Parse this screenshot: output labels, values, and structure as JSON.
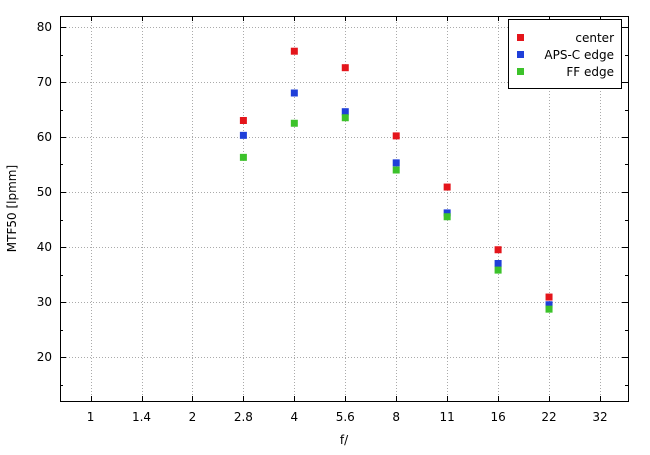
{
  "chart_data": {
    "type": "scatter",
    "xlabel": "f/",
    "ylabel": "MTF50 [lpmm]",
    "x_categories": [
      "1",
      "1.4",
      "2",
      "2.8",
      "4",
      "5.6",
      "8",
      "11",
      "16",
      "22",
      "32"
    ],
    "ylim": [
      12,
      82
    ],
    "yticks": [
      20,
      30,
      40,
      50,
      60,
      70,
      80
    ],
    "grid": true,
    "legend_position": "top-right",
    "series": [
      {
        "name": "center",
        "color": "#e4151b",
        "points": [
          {
            "x": "2.8",
            "y": 63.0
          },
          {
            "x": "4",
            "y": 75.6
          },
          {
            "x": "5.6",
            "y": 72.6
          },
          {
            "x": "8",
            "y": 60.2
          },
          {
            "x": "11",
            "y": 50.9
          },
          {
            "x": "16",
            "y": 39.5
          },
          {
            "x": "22",
            "y": 30.9
          }
        ]
      },
      {
        "name": "APS-C edge",
        "color": "#1f3fd9",
        "points": [
          {
            "x": "2.8",
            "y": 60.3
          },
          {
            "x": "4",
            "y": 68.0
          },
          {
            "x": "5.6",
            "y": 64.6
          },
          {
            "x": "8",
            "y": 55.3
          },
          {
            "x": "11",
            "y": 46.2
          },
          {
            "x": "16",
            "y": 37.0
          },
          {
            "x": "22",
            "y": 29.5
          }
        ]
      },
      {
        "name": "FF edge",
        "color": "#3cc22a",
        "points": [
          {
            "x": "2.8",
            "y": 56.3
          },
          {
            "x": "4",
            "y": 62.5
          },
          {
            "x": "5.6",
            "y": 63.5
          },
          {
            "x": "8",
            "y": 54.0
          },
          {
            "x": "11",
            "y": 45.5
          },
          {
            "x": "16",
            "y": 35.8
          },
          {
            "x": "22",
            "y": 28.7
          }
        ]
      }
    ]
  }
}
